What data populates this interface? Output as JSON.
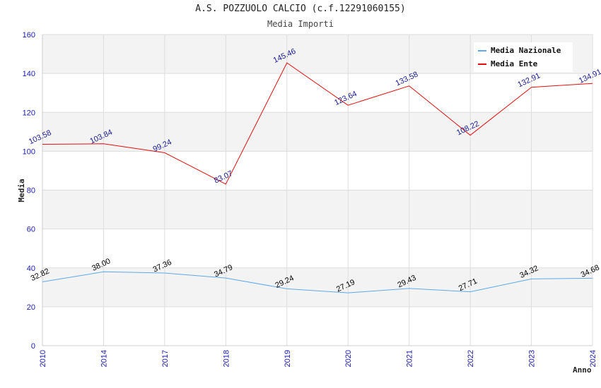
{
  "chart_data": {
    "type": "line",
    "title": "A.S. POZZUOLO CALCIO (c.f.12291060155)",
    "subtitle": "Media Importi",
    "xlabel": "Anno",
    "ylabel": "Media",
    "categories": [
      "2010",
      "2014",
      "2017",
      "2018",
      "2019",
      "2020",
      "2021",
      "2022",
      "2023",
      "2024"
    ],
    "ylim": [
      0,
      160
    ],
    "yticks": [
      0,
      20,
      40,
      60,
      80,
      100,
      120,
      140,
      160
    ],
    "grid": true,
    "legend_position": "top-right",
    "series": [
      {
        "name": "Media Nazionale",
        "color": "#5ea8e8",
        "label_color": "#000000",
        "values": [
          32.82,
          38.0,
          37.36,
          34.79,
          29.24,
          27.19,
          29.43,
          27.71,
          34.32,
          34.68
        ],
        "labels": [
          "32.82",
          "38.00",
          "37.36",
          "34.79",
          "29.24",
          "27.19",
          "29.43",
          "27.71",
          "34.32",
          "34.68"
        ]
      },
      {
        "name": "Media Ente",
        "color": "#e01010",
        "label_color": "#1a1a8c",
        "values": [
          103.58,
          103.84,
          99.24,
          83.07,
          145.46,
          123.64,
          133.58,
          108.22,
          132.91,
          134.91
        ],
        "labels": [
          "103.58",
          "103.84",
          "99.24",
          "83.07",
          "145.46",
          "123.64",
          "133.58",
          "108.22",
          "132.91",
          "134.91"
        ]
      }
    ]
  }
}
